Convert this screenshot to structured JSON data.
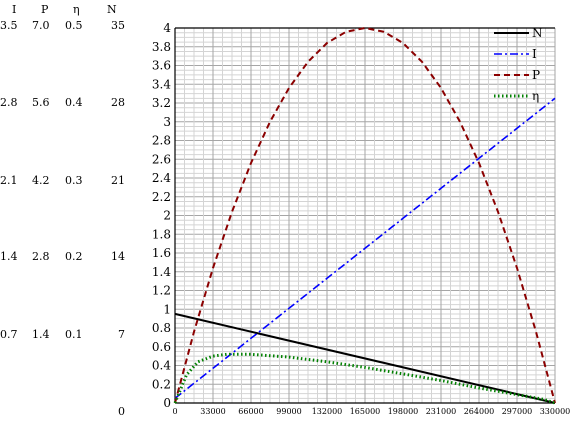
{
  "chart_data": {
    "type": "line",
    "xlim": [
      0,
      330000
    ],
    "ylim": [
      0,
      4
    ],
    "x_ticks": [
      "0",
      "33000",
      "66000",
      "99000",
      "132000",
      "165000",
      "198000",
      "231000",
      "264000",
      "297000",
      "330000"
    ],
    "y_ticks": [
      "0",
      "0.2",
      "0.4",
      "0.6",
      "0.8",
      "1",
      "1.2",
      "1.4",
      "1.6",
      "1.8",
      "2",
      "2.2",
      "2.4",
      "2.6",
      "2.8",
      "3",
      "3.2",
      "3.4",
      "3.6",
      "3.8",
      "4"
    ],
    "grid": true,
    "legend_position": "top-right",
    "side_axes": {
      "headers": [
        "I",
        "P",
        "η",
        "N"
      ],
      "rows": [
        [
          "3.5",
          "7.0",
          "0.5",
          "35"
        ],
        [
          "2.8",
          "5.6",
          "0.4",
          "28"
        ],
        [
          "2.1",
          "4.2",
          "0.3",
          "21"
        ],
        [
          "1.4",
          "2.8",
          "0.2",
          "14"
        ],
        [
          "0.7",
          "1.4",
          "0.1",
          "7"
        ],
        [
          "",
          "",
          "",
          "0"
        ]
      ]
    },
    "series": [
      {
        "name": "N",
        "color": "#000000",
        "dash": "solid",
        "x": [
          0,
          330000
        ],
        "y": [
          0.95,
          0.0
        ]
      },
      {
        "name": "I",
        "color": "#0000ff",
        "dash": "dashdot",
        "x": [
          0,
          33000,
          66000,
          99000,
          132000,
          165000,
          198000,
          231000,
          264000,
          297000,
          330000
        ],
        "y": [
          0.05,
          0.37,
          0.69,
          1.01,
          1.33,
          1.65,
          1.97,
          2.29,
          2.61,
          2.93,
          3.25
        ]
      },
      {
        "name": "P",
        "color": "#8b0000",
        "dash": "dashed",
        "x": [
          0,
          16500,
          33000,
          49500,
          66000,
          82500,
          99000,
          115500,
          132000,
          148500,
          165000,
          181500,
          198000,
          214500,
          231000,
          247500,
          264000,
          280500,
          297000,
          313500,
          330000
        ],
        "y": [
          0.0,
          0.76,
          1.44,
          2.04,
          2.56,
          3.0,
          3.36,
          3.64,
          3.84,
          3.96,
          4.0,
          3.96,
          3.84,
          3.64,
          3.36,
          3.0,
          2.56,
          2.04,
          1.44,
          0.76,
          0.0
        ]
      },
      {
        "name": "η",
        "color": "#008000",
        "dash": "dotted",
        "x": [
          0,
          10000,
          20000,
          33000,
          45000,
          66000,
          99000,
          132000,
          165000,
          198000,
          231000,
          264000,
          297000,
          320000,
          330000
        ],
        "y": [
          0.0,
          0.3,
          0.44,
          0.5,
          0.52,
          0.52,
          0.49,
          0.44,
          0.38,
          0.31,
          0.24,
          0.16,
          0.09,
          0.04,
          0.0
        ]
      }
    ]
  }
}
